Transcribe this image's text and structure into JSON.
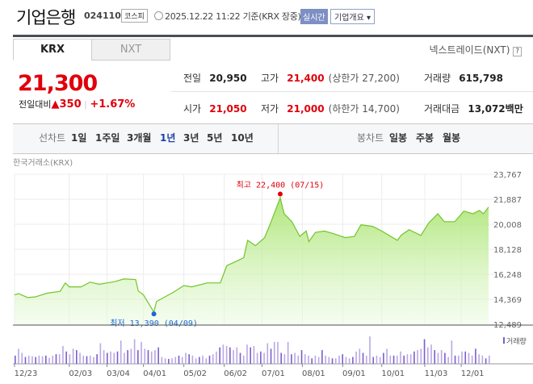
{
  "header": {
    "name": "기업은행",
    "code": "024110",
    "market": "코스피",
    "timestamp": "2025.12.22 11:22 기준(KRX 장중)",
    "realtime": "실시간",
    "overview": "기업개요 ▾"
  },
  "tabs": [
    {
      "label": "KRX",
      "active": true
    },
    {
      "label": "NXT",
      "active": false
    }
  ],
  "nxt_link": "넥스트레이드(NXT)",
  "help": "?",
  "quote": {
    "price": "21,300",
    "change_label": "전일대비",
    "change_icon": "▲",
    "change": "350",
    "change_pct": "+1.67%"
  },
  "stats": {
    "prev_label": "전일",
    "prev": "20,950",
    "high_label": "고가",
    "high": "21,400",
    "upper_limit": "(상한가 27,200)",
    "volume_label": "거래량",
    "volume": "615,798",
    "open_label": "시가",
    "open": "21,050",
    "low_label": "저가",
    "low": "21,000",
    "lower_limit": "(하한가 14,700)",
    "amount_label": "거래대금",
    "amount": "13,072",
    "amount_unit": "백만"
  },
  "toolbar": {
    "line_label": "선차트",
    "line_periods": [
      "1일",
      "1주일",
      "3개월",
      "1년",
      "3년",
      "5년",
      "10년"
    ],
    "active": "1년",
    "candle_label": "봉차트",
    "candle_periods": [
      "일봉",
      "주봉",
      "월봉"
    ]
  },
  "colors": {
    "up": "#e0000c",
    "line": "#73c42a",
    "high": "#e0000c",
    "low": "#1a66d6",
    "volume": "#7b5fc7"
  },
  "chart_data": {
    "type": "area",
    "exchange": "한국거래소(KRX)",
    "ylim": [
      12489,
      23767
    ],
    "yticks": [
      "23,767",
      "21,887",
      "20,008",
      "18,128",
      "16,248",
      "14,369",
      "12,489"
    ],
    "xticks": [
      [
        "2024-12-23",
        "12/23"
      ],
      [
        "2025-02-03",
        "02/03"
      ],
      [
        "2025-03-04",
        "03/04"
      ],
      [
        "2025-04-01",
        "04/01"
      ],
      [
        "2025-05-02",
        "05/02"
      ],
      [
        "2025-06-02",
        "06/02"
      ],
      [
        "2025-07-01",
        "07/01"
      ],
      [
        "2025-08-01",
        "08/01"
      ],
      [
        "2025-09-01",
        "09/01"
      ],
      [
        "2025-10-01",
        "10/01"
      ],
      [
        "2025-11-03",
        "11/03"
      ],
      [
        "2025-12-01",
        "12/01"
      ]
    ],
    "series": [
      [
        "2024-12-23",
        14700
      ],
      [
        "2024-12-26",
        14800
      ],
      [
        "2025-01-02",
        14500
      ],
      [
        "2025-01-08",
        14550
      ],
      [
        "2025-01-17",
        14830
      ],
      [
        "2025-01-27",
        14960
      ],
      [
        "2025-01-31",
        15600
      ],
      [
        "2025-02-03",
        15300
      ],
      [
        "2025-02-12",
        15300
      ],
      [
        "2025-02-19",
        15660
      ],
      [
        "2025-02-26",
        15500
      ],
      [
        "2025-03-04",
        15600
      ],
      [
        "2025-03-10",
        15700
      ],
      [
        "2025-03-17",
        15900
      ],
      [
        "2025-03-26",
        15850
      ],
      [
        "2025-03-28",
        15000
      ],
      [
        "2025-04-01",
        14700
      ],
      [
        "2025-04-09",
        13400
      ],
      [
        "2025-04-11",
        14200
      ],
      [
        "2025-04-24",
        14900
      ],
      [
        "2025-05-02",
        15400
      ],
      [
        "2025-05-08",
        15300
      ],
      [
        "2025-05-20",
        15600
      ],
      [
        "2025-05-30",
        15600
      ],
      [
        "2025-06-04",
        16900
      ],
      [
        "2025-06-13",
        17300
      ],
      [
        "2025-06-17",
        17500
      ],
      [
        "2025-06-20",
        18800
      ],
      [
        "2025-06-26",
        18400
      ],
      [
        "2025-07-03",
        19000
      ],
      [
        "2025-07-08",
        20200
      ],
      [
        "2025-07-15",
        22000
      ],
      [
        "2025-07-18",
        20800
      ],
      [
        "2025-07-24",
        20200
      ],
      [
        "2025-07-30",
        19100
      ],
      [
        "2025-08-04",
        19500
      ],
      [
        "2025-08-06",
        18700
      ],
      [
        "2025-08-11",
        19400
      ],
      [
        "2025-08-18",
        19500
      ],
      [
        "2025-08-25",
        19300
      ],
      [
        "2025-08-29",
        19170
      ],
      [
        "2025-09-03",
        19000
      ],
      [
        "2025-09-10",
        19100
      ],
      [
        "2025-09-15",
        19970
      ],
      [
        "2025-09-24",
        19850
      ],
      [
        "2025-10-01",
        19500
      ],
      [
        "2025-10-13",
        18800
      ],
      [
        "2025-10-16",
        19200
      ],
      [
        "2025-10-22",
        19600
      ],
      [
        "2025-10-31",
        19170
      ],
      [
        "2025-11-06",
        20100
      ],
      [
        "2025-11-13",
        20800
      ],
      [
        "2025-11-18",
        20200
      ],
      [
        "2025-11-26",
        20200
      ],
      [
        "2025-12-03",
        21000
      ],
      [
        "2025-12-10",
        20800
      ],
      [
        "2025-12-15",
        21050
      ],
      [
        "2025-12-18",
        20800
      ],
      [
        "2025-12-22",
        21300
      ]
    ],
    "high": {
      "label": "최고 22,400 (07/15)",
      "date": "2025-07-15",
      "value": 22400
    },
    "low": {
      "label": "최저 13,390 (04/09)",
      "date": "2025-04-09",
      "value": 13390
    },
    "volume_label": "거래량",
    "volume_relative": [
      0.3,
      0.55,
      0.4,
      0.25,
      0.3,
      0.28,
      0.25,
      0.3,
      0.28,
      0.3,
      0.22,
      0.3,
      0.35,
      0.35,
      0.65,
      0.45,
      0.35,
      0.55,
      0.5,
      0.4,
      0.3,
      0.28,
      0.3,
      0.25,
      0.35,
      0.75,
      0.5,
      0.4,
      0.45,
      0.4,
      0.45,
      0.85,
      0.4,
      0.5,
      0.55,
      0.9,
      0.5,
      0.8,
      0.55,
      0.5,
      0.45,
      0.5,
      0.6,
      0.25,
      0.2,
      0.18,
      0.2,
      0.25,
      0.3,
      0.25,
      0.4,
      0.35,
      0.3,
      0.2,
      0.25,
      0.3,
      0.2,
      0.3,
      0.35,
      0.45,
      0.6,
      0.7,
      0.65,
      0.6,
      0.5,
      0.6,
      0.4,
      0.3,
      0.7,
      0.6,
      0.65,
      0.4,
      0.45,
      0.4,
      0.75,
      0.55,
      0.8,
      0.8,
      0.4,
      0.35,
      0.8,
      0.35,
      0.4,
      0.3,
      0.5,
      0.35,
      0.3,
      0.2,
      0.3,
      0.25,
      0.5,
      0.3,
      0.25,
      0.2,
      0.2,
      0.3,
      0.35,
      0.25,
      0.2,
      0.25,
      0.45,
      0.55,
      0.4,
      0.3,
      1.0,
      0.25,
      0.3,
      0.25,
      0.4,
      0.55,
      0.3,
      0.3,
      0.3,
      0.45,
      0.3,
      0.35,
      0.35,
      0.45,
      0.5,
      0.55,
      0.9,
      0.6,
      0.7,
      0.5,
      0.4,
      0.5,
      0.4,
      0.25,
      0.85,
      0.3,
      0.3,
      0.45,
      0.45,
      0.4,
      0.3,
      0.55,
      0.35,
      0.3,
      0.2,
      0.3
    ]
  }
}
